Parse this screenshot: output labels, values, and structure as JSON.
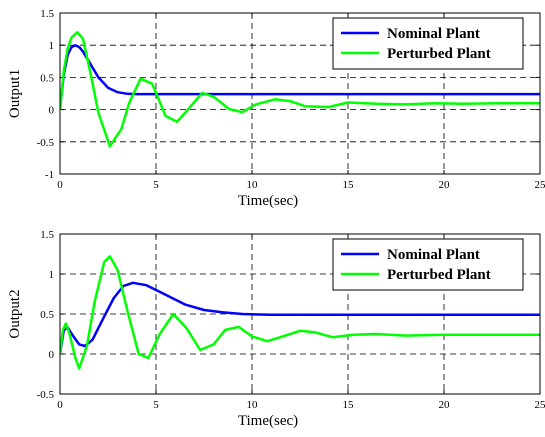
{
  "chart_data": [
    {
      "type": "line",
      "ylabel": "Output1",
      "xlabel": "Time(sec)",
      "xlim": [
        0,
        25
      ],
      "ylim": [
        -1,
        1.5
      ],
      "xticks": [
        "0",
        "5",
        "10",
        "15",
        "20",
        "25"
      ],
      "yticks": [
        "-1",
        "-0.5",
        "0",
        "0.5",
        "1",
        "1.5"
      ],
      "grid": true,
      "legend_position": "top-right",
      "series": [
        {
          "name": "Nominal Plant",
          "color": "#0000ff",
          "x": [
            0,
            0.2,
            0.4,
            0.6,
            0.8,
            1.0,
            1.2,
            1.5,
            2.0,
            2.5,
            3.0,
            3.5,
            4.0,
            5.0,
            6.0,
            8.0,
            10.0,
            15.0,
            20.0,
            25.0
          ],
          "y": [
            0,
            0.55,
            0.85,
            0.97,
            1.0,
            0.97,
            0.9,
            0.75,
            0.5,
            0.34,
            0.27,
            0.245,
            0.24,
            0.24,
            0.24,
            0.24,
            0.24,
            0.24,
            0.24,
            0.24
          ]
        },
        {
          "name": "Perturbed Plant",
          "color": "#00ff00",
          "x": [
            0,
            0.2,
            0.4,
            0.6,
            0.9,
            1.2,
            1.6,
            2.0,
            2.6,
            3.2,
            3.6,
            4.2,
            4.8,
            5.5,
            6.1,
            6.8,
            7.4,
            8.0,
            8.8,
            9.5,
            10.2,
            11.2,
            12.0,
            12.8,
            14.0,
            15.0,
            16.5,
            18.0,
            19.5,
            21.0,
            23.0,
            25.0
          ],
          "y": [
            0,
            0.6,
            0.95,
            1.12,
            1.2,
            1.1,
            0.55,
            -0.05,
            -0.57,
            -0.3,
            0.1,
            0.48,
            0.4,
            -0.1,
            -0.19,
            0.05,
            0.26,
            0.2,
            0.01,
            -0.04,
            0.08,
            0.16,
            0.13,
            0.05,
            0.04,
            0.11,
            0.09,
            0.08,
            0.1,
            0.09,
            0.1,
            0.1
          ]
        }
      ]
    },
    {
      "type": "line",
      "ylabel": "Output2",
      "xlabel": "Time(sec)",
      "xlim": [
        0,
        25
      ],
      "ylim": [
        -0.5,
        1.5
      ],
      "xticks": [
        "0",
        "5",
        "10",
        "15",
        "20",
        "25"
      ],
      "yticks": [
        "-0.5",
        "0",
        "0.5",
        "1",
        "1.5"
      ],
      "grid": true,
      "legend_position": "top-right",
      "series": [
        {
          "name": "Nominal Plant",
          "color": "#0000ff",
          "x": [
            0,
            0.2,
            0.4,
            0.7,
            1.0,
            1.3,
            1.7,
            2.2,
            2.8,
            3.3,
            3.8,
            4.5,
            5.5,
            6.5,
            7.5,
            8.5,
            9.5,
            11.0,
            13.0,
            15.0,
            20.0,
            25.0
          ],
          "y": [
            0,
            0.3,
            0.33,
            0.22,
            0.12,
            0.1,
            0.18,
            0.42,
            0.7,
            0.85,
            0.89,
            0.86,
            0.74,
            0.62,
            0.55,
            0.52,
            0.5,
            0.49,
            0.49,
            0.49,
            0.49,
            0.49
          ]
        },
        {
          "name": "Perturbed Plant",
          "color": "#00ff00",
          "x": [
            0,
            0.15,
            0.3,
            0.5,
            0.8,
            1.0,
            1.4,
            1.8,
            2.3,
            2.6,
            3.0,
            3.5,
            4.1,
            4.6,
            5.2,
            5.9,
            6.6,
            7.3,
            8.0,
            8.6,
            9.3,
            10.0,
            10.8,
            11.6,
            12.5,
            13.3,
            14.2,
            15.3,
            16.5,
            18.0,
            20.0,
            22.0,
            25.0
          ],
          "y": [
            0,
            0.3,
            0.38,
            0.25,
            -0.05,
            -0.18,
            0.1,
            0.65,
            1.15,
            1.22,
            1.05,
            0.55,
            0.0,
            -0.05,
            0.25,
            0.5,
            0.32,
            0.05,
            0.12,
            0.3,
            0.34,
            0.22,
            0.16,
            0.22,
            0.29,
            0.27,
            0.21,
            0.24,
            0.25,
            0.23,
            0.24,
            0.24,
            0.24
          ]
        }
      ]
    }
  ]
}
